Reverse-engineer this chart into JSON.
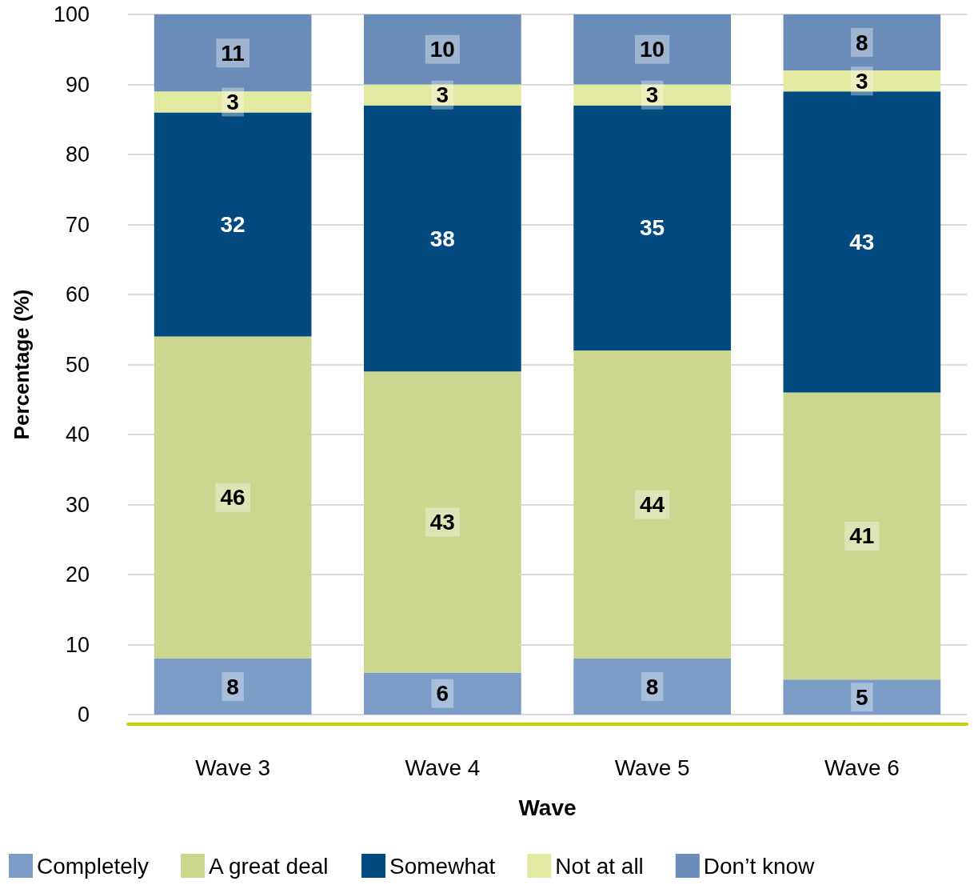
{
  "chart_data": {
    "type": "bar",
    "stacked": true,
    "xlabel": "Wave",
    "ylabel": "Percentage (%)",
    "categories": [
      "Wave 3",
      "Wave 4",
      "Wave 5",
      "Wave 6"
    ],
    "series": [
      {
        "name": "Completely",
        "color": "#7a9cc6",
        "values": [
          8,
          6,
          8,
          5
        ]
      },
      {
        "name": "A great deal",
        "color": "#cdd68f",
        "values": [
          46,
          43,
          44,
          41
        ]
      },
      {
        "name": "Somewhat",
        "color": "#034a80",
        "values": [
          32,
          38,
          35,
          43
        ]
      },
      {
        "name": "Not at all",
        "color": "#e2e9a0",
        "values": [
          3,
          3,
          3,
          3
        ]
      },
      {
        "name": "Don’t know",
        "color": "#6a8cb8",
        "values": [
          11,
          10,
          10,
          8
        ]
      }
    ],
    "ylim": [
      0,
      100
    ],
    "yticks": [
      0,
      10,
      20,
      30,
      40,
      50,
      60,
      70,
      80,
      90,
      100
    ],
    "grid": "y",
    "legend": "bottom",
    "data_labels": true
  }
}
